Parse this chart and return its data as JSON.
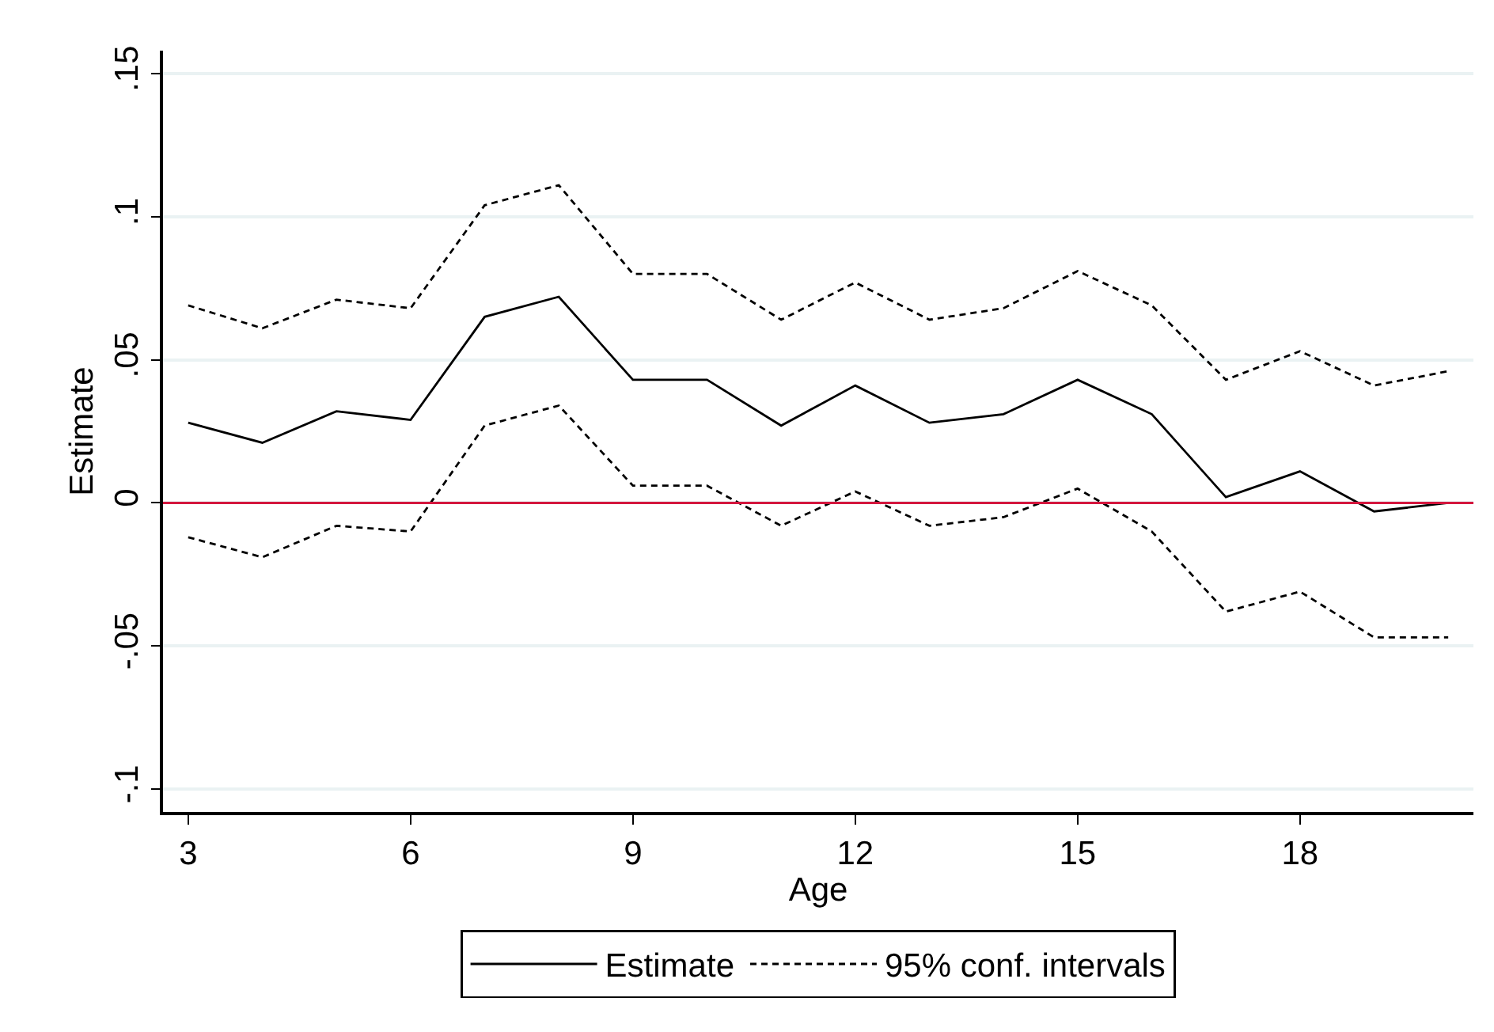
{
  "chart_data": {
    "type": "line",
    "xlabel": "Age",
    "ylabel": "Estimate",
    "x": [
      3,
      4,
      5,
      6,
      7,
      8,
      9,
      10,
      11,
      12,
      13,
      14,
      15,
      16,
      17,
      18,
      19,
      20
    ],
    "xlim": [
      2.66,
      20.34
    ],
    "xticks": [
      3,
      6,
      9,
      12,
      15,
      18
    ],
    "ylim": [
      -0.108,
      0.158
    ],
    "yticks": [
      {
        "value": -0.1,
        "label": "-.1"
      },
      {
        "value": -0.05,
        "label": "-.05"
      },
      0,
      {
        "value": 0.05,
        "label": ".05"
      },
      {
        "value": 0.1,
        "label": ".1"
      },
      {
        "value": 0.15,
        "label": ".15"
      }
    ],
    "grid": "y",
    "legend": "bottom",
    "series": [
      {
        "name": "Estimate",
        "color": "#000000",
        "line_style": "solid",
        "values": [
          0.028,
          0.021,
          0.032,
          0.029,
          0.065,
          0.072,
          0.043,
          0.043,
          0.027,
          0.041,
          0.028,
          0.031,
          0.043,
          0.031,
          0.002,
          0.011,
          -0.003,
          0.0
        ]
      },
      {
        "name": "95% conf. intervals",
        "color": "#000000",
        "line_style": "dashed",
        "values": [
          0.069,
          0.061,
          0.071,
          0.068,
          0.104,
          0.111,
          0.08,
          0.08,
          0.064,
          0.077,
          0.064,
          0.068,
          0.081,
          0.069,
          0.043,
          0.053,
          0.041,
          0.046
        ]
      },
      {
        "color": "#000000",
        "line_style": "dashed",
        "values": [
          -0.012,
          -0.019,
          -0.008,
          -0.01,
          0.027,
          0.034,
          0.006,
          0.006,
          -0.008,
          0.004,
          -0.008,
          -0.005,
          0.005,
          -0.01,
          -0.038,
          -0.031,
          -0.047,
          -0.047
        ]
      }
    ],
    "ref_lines": [
      {
        "axis": "y",
        "value": 0,
        "color": "#d4173e"
      }
    ]
  }
}
